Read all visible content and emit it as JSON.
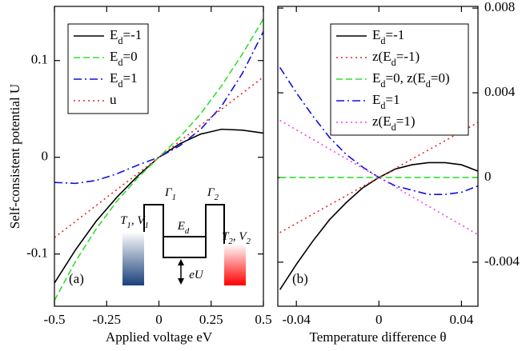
{
  "chart_data": [
    {
      "type": "line",
      "panel_label": "(a)",
      "xlabel": "Applied voltage eV",
      "ylabel": "Self-consistent potential U",
      "x": [
        -0.5,
        -0.4,
        -0.3,
        -0.2,
        -0.1,
        0,
        0.1,
        0.2,
        0.3,
        0.4,
        0.5
      ],
      "xlim": [
        -0.5,
        0.5
      ],
      "xticks": [
        -0.5,
        -0.25,
        0,
        0.25,
        0.5
      ],
      "ylim": [
        -0.154,
        0.156
      ],
      "yticks": [
        -0.1,
        0,
        0.1
      ],
      "yaxis_position": "left",
      "series": [
        {
          "name": "Ed=-1",
          "color": "#000000",
          "dash": "solid",
          "values": [
            -0.13,
            -0.096,
            -0.066,
            -0.041,
            -0.019,
            0,
            0.014,
            0.024,
            0.029,
            0.028,
            0.025
          ]
        },
        {
          "name": "Ed=0",
          "color": "#33dd33",
          "dash": "dashed",
          "values": [
            -0.148,
            -0.108,
            -0.074,
            -0.045,
            -0.021,
            0,
            0.021,
            0.045,
            0.074,
            0.107,
            0.143
          ]
        },
        {
          "name": "Ed=1",
          "color": "#1111dd",
          "dash": "dashdot",
          "values": [
            -0.026,
            -0.027,
            -0.024,
            -0.017,
            -0.008,
            0,
            0.012,
            0.029,
            0.053,
            0.087,
            0.13
          ]
        },
        {
          "name": "u",
          "color": "#ee2222",
          "dash": "dotted",
          "values": [
            -0.083,
            -0.0664,
            -0.0498,
            -0.0332,
            -0.0166,
            0,
            0.0166,
            0.0332,
            0.0498,
            0.0664,
            0.083
          ]
        }
      ],
      "inset_labels": [
        "Γ1",
        "Γ2",
        "Ed",
        "T1, V1",
        "T2, V2",
        "eU"
      ]
    },
    {
      "type": "line",
      "panel_label": "(b)",
      "xlabel": "Temperature difference θ",
      "x": [
        -0.048,
        -0.04,
        -0.032,
        -0.024,
        -0.016,
        -0.008,
        0,
        0.008,
        0.016,
        0.024,
        0.032,
        0.04,
        0.048
      ],
      "xlim": [
        -0.049,
        0.048
      ],
      "xticks": [
        -0.04,
        0,
        0.04
      ],
      "ylim": [
        -0.00608,
        0.00808
      ],
      "yticks": [
        -0.004,
        0,
        0.004,
        0.008
      ],
      "yaxis_position": "right",
      "series": [
        {
          "name": "Ed=-1",
          "color": "#000000",
          "dash": "solid",
          "values": [
            -0.0053,
            -0.0041,
            -0.003,
            -0.002,
            -0.0012,
            -0.0005,
            0,
            0.0004,
            0.0006,
            0.0007,
            0.0007,
            0.0006,
            0.0003
          ]
        },
        {
          "name": "z(Ed=-1)",
          "color": "#ee2222",
          "dash": "dotted",
          "values": [
            -0.0026,
            -0.00217,
            -0.00173,
            -0.0013,
            -0.00087,
            -0.00043,
            0,
            0.00043,
            0.00087,
            0.0013,
            0.00173,
            0.00217,
            0.0026
          ]
        },
        {
          "name": "Ed=0, z(Ed=0)",
          "color": "#33dd33",
          "dash": "dashed",
          "values": [
            0,
            0,
            0,
            0,
            0,
            0,
            0,
            0,
            0,
            0,
            0,
            0,
            0
          ]
        },
        {
          "name": "Ed=1",
          "color": "#1111dd",
          "dash": "dashdot",
          "values": [
            0.0052,
            0.004,
            0.0029,
            0.0019,
            0.0011,
            0.0005,
            0,
            -0.0004,
            -0.0006,
            -0.0008,
            -0.0008,
            -0.0007,
            -0.0004
          ]
        },
        {
          "name": "z(Ed=1)",
          "color": "#ee44ee",
          "dash": "dotted",
          "values": [
            0.0027,
            0.00225,
            0.0018,
            0.00135,
            0.0009,
            0.00045,
            0,
            -0.00045,
            -0.0009,
            -0.00135,
            -0.0018,
            -0.00225,
            -0.0027
          ]
        }
      ]
    }
  ]
}
